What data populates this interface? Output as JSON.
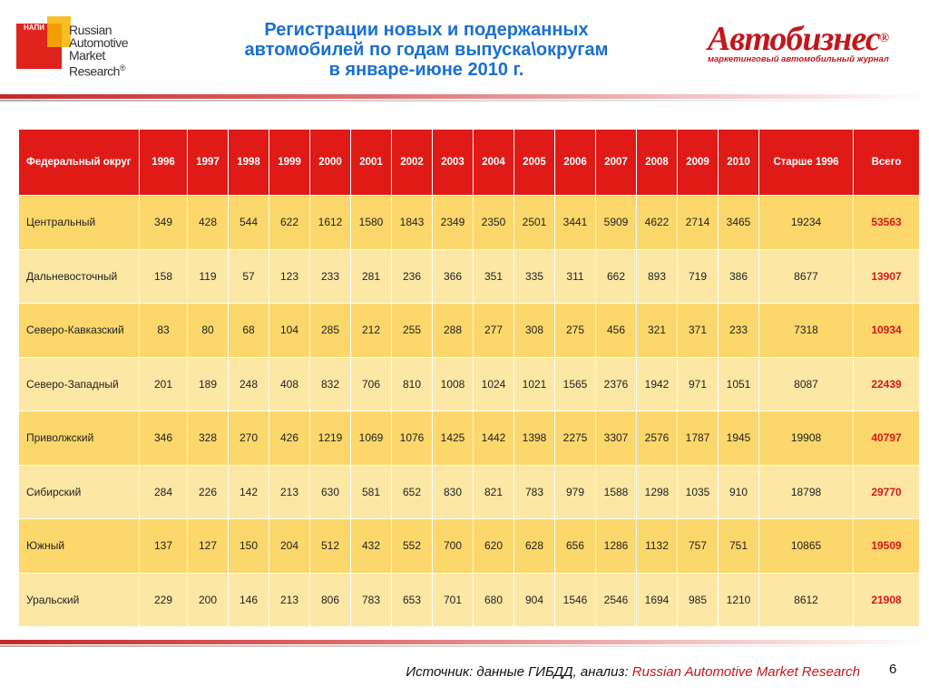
{
  "header": {
    "logo_left": {
      "badge": "НАПИ",
      "lines": [
        "Russian",
        "Automotive",
        "Market",
        "Research"
      ],
      "registered": "®"
    },
    "title_lines": [
      "Регистрации новых и подержанных",
      "автомобилей по годам выпуска\\округам",
      "в январе-июне 2010 г."
    ],
    "logo_right": {
      "name": "Автобизнес",
      "registered": "®",
      "tagline": "маркетинговый автомобильный журнал"
    }
  },
  "table": {
    "columns": [
      "Федеральный округ",
      "1996",
      "1997",
      "1998",
      "1999",
      "2000",
      "2001",
      "2002",
      "2003",
      "2004",
      "2005",
      "2006",
      "2007",
      "2008",
      "2009",
      "2010",
      "Старше 1996",
      "Всего"
    ],
    "rows": [
      [
        "Центральный",
        "349",
        "428",
        "544",
        "622",
        "1612",
        "1580",
        "1843",
        "2349",
        "2350",
        "2501",
        "3441",
        "5909",
        "4622",
        "2714",
        "3465",
        "19234",
        "53563"
      ],
      [
        "Дальневосточный",
        "158",
        "119",
        "57",
        "123",
        "233",
        "281",
        "236",
        "366",
        "351",
        "335",
        "311",
        "662",
        "893",
        "719",
        "386",
        "8677",
        "13907"
      ],
      [
        "Северо-Кавказский",
        "83",
        "80",
        "68",
        "104",
        "285",
        "212",
        "255",
        "288",
        "277",
        "308",
        "275",
        "456",
        "321",
        "371",
        "233",
        "7318",
        "10934"
      ],
      [
        "Северо-Западный",
        "201",
        "189",
        "248",
        "408",
        "832",
        "706",
        "810",
        "1008",
        "1024",
        "1021",
        "1565",
        "2376",
        "1942",
        "971",
        "1051",
        "8087",
        "22439"
      ],
      [
        "Приволжский",
        "346",
        "328",
        "270",
        "426",
        "1219",
        "1069",
        "1076",
        "1425",
        "1442",
        "1398",
        "2275",
        "3307",
        "2576",
        "1787",
        "1945",
        "19908",
        "40797"
      ],
      [
        "Сибирский",
        "284",
        "226",
        "142",
        "213",
        "630",
        "581",
        "652",
        "830",
        "821",
        "783",
        "979",
        "1588",
        "1298",
        "1035",
        "910",
        "18798",
        "29770"
      ],
      [
        "Южный",
        "137",
        "127",
        "150",
        "204",
        "512",
        "432",
        "552",
        "700",
        "620",
        "628",
        "656",
        "1286",
        "1132",
        "757",
        "751",
        "10865",
        "19509"
      ],
      [
        "Уральский",
        "229",
        "200",
        "146",
        "213",
        "806",
        "783",
        "653",
        "701",
        "680",
        "904",
        "1546",
        "2546",
        "1694",
        "985",
        "1210",
        "8612",
        "21908"
      ]
    ]
  },
  "footer": {
    "source_prefix": "Источник: данные ГИБДД, анализ: ",
    "source_highlight": "Russian Automotive Market Research",
    "page_number": "6"
  },
  "colors": {
    "header_red": "#e01b17",
    "row_dark": "#fcd76b",
    "row_light": "#fde7a4",
    "title_blue": "#1a6fd2",
    "total_red": "#d8171b"
  }
}
